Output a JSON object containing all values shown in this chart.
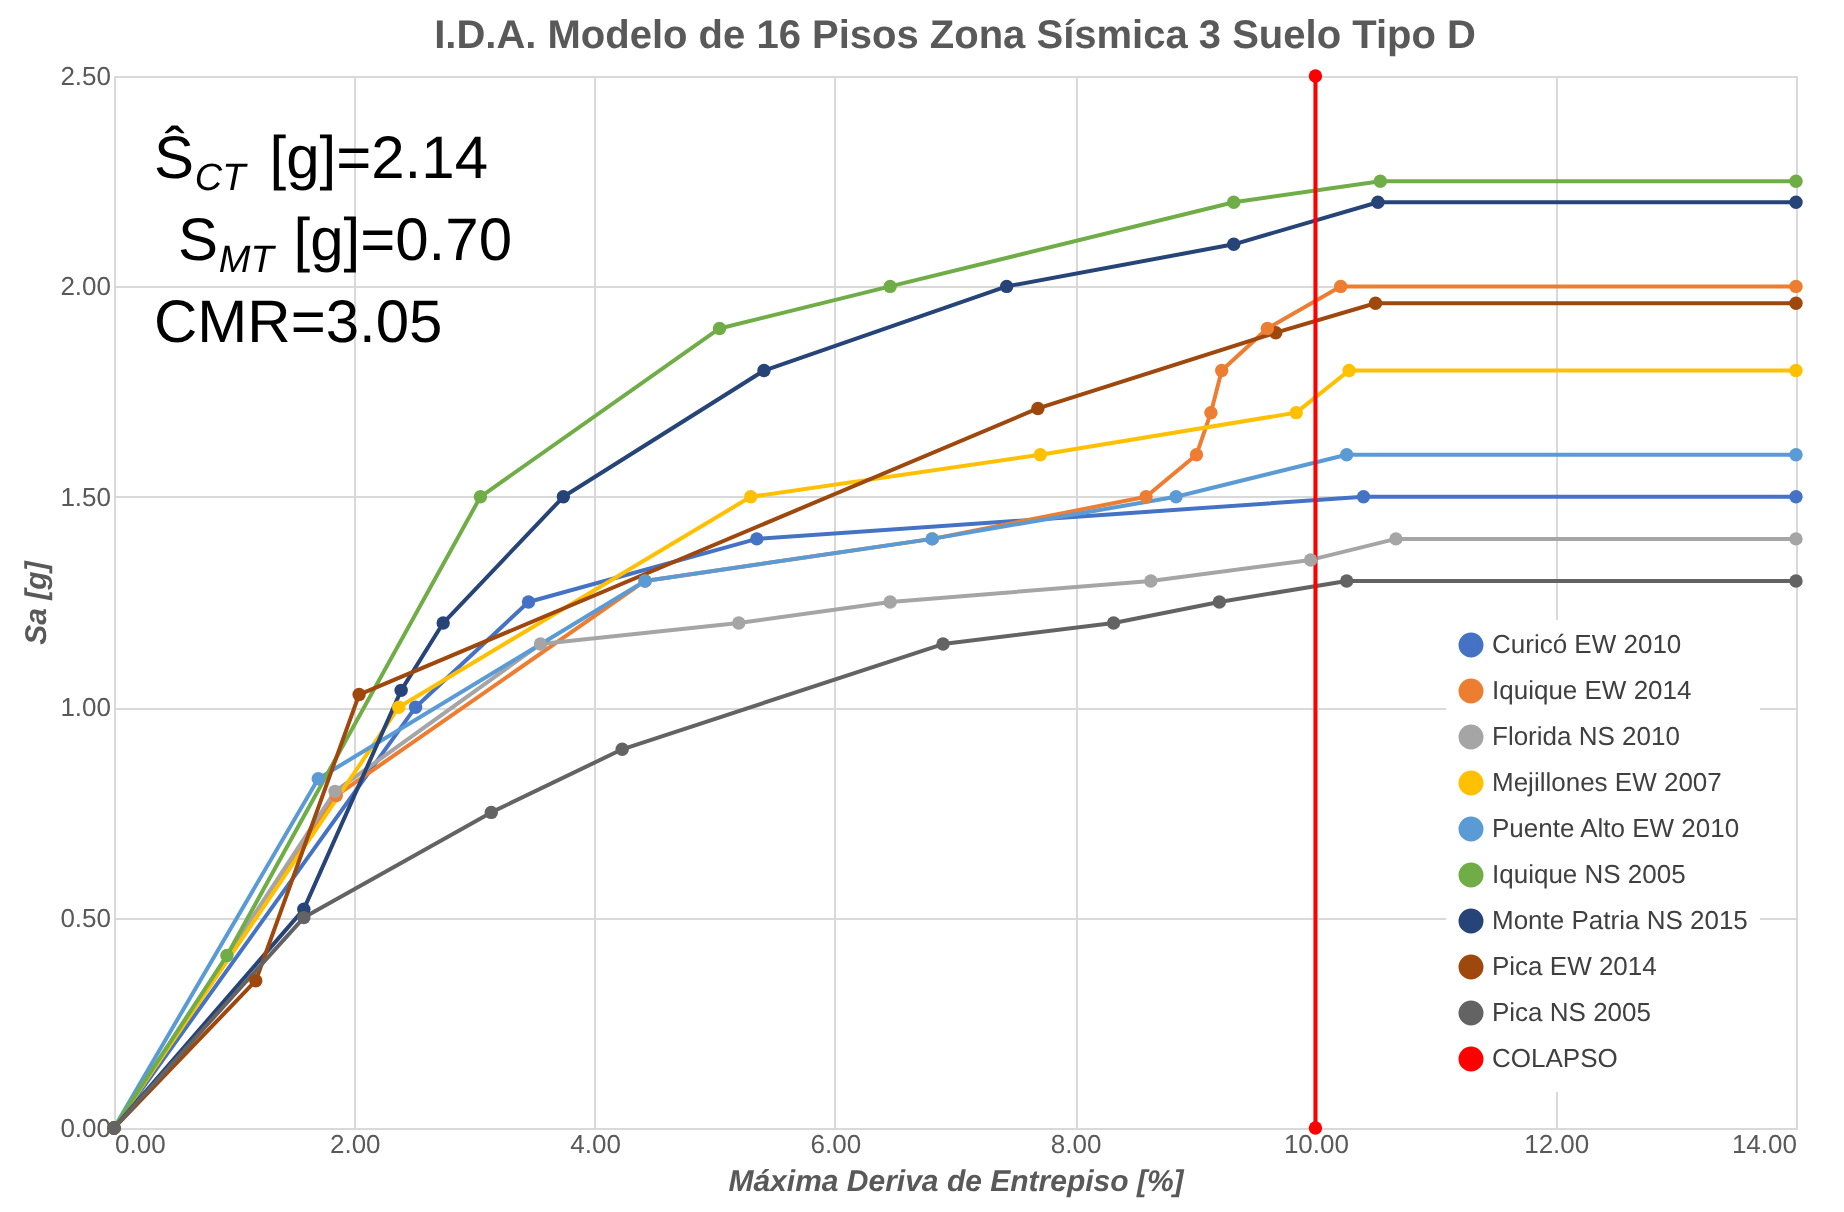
{
  "chart_data": {
    "type": "line",
    "title": "I.D.A. Modelo de 16 Pisos Zona Sísmica 3 Suelo Tipo D",
    "xlabel": "Máxima Deriva de Entrepiso [%]",
    "ylabel": "Sa [g]",
    "xlim": [
      0,
      14
    ],
    "xticks": [
      {
        "value": 0,
        "label": "0.00"
      },
      {
        "value": 2,
        "label": "2.00"
      },
      {
        "value": 4,
        "label": "4.00"
      },
      {
        "value": 6,
        "label": "6.00"
      },
      {
        "value": 8,
        "label": "8.00"
      },
      {
        "value": 10,
        "label": "10.00"
      },
      {
        "value": 12,
        "label": "12.00"
      },
      {
        "value": 14,
        "label": "14.00"
      }
    ],
    "ylim": [
      0,
      2.5
    ],
    "yticks": [
      {
        "value": 0,
        "label": "0.00"
      },
      {
        "value": 0.5,
        "label": "0.50"
      },
      {
        "value": 1,
        "label": "1.00"
      },
      {
        "value": 1.5,
        "label": "1.50"
      },
      {
        "value": 2,
        "label": "2.00"
      },
      {
        "value": 2.5,
        "label": "2.50"
      }
    ],
    "grid": true,
    "legend": "bottom right",
    "marker": "circle",
    "annotations": [
      "Ŝ$_{CT}$ [g]=2.14",
      "S$_{MT}$ [g]=0.70",
      "CMR=3.05"
    ],
    "series": [
      {
        "name": "Curicó EW 2010",
        "color": "#4472c4",
        "x": [
          0,
          2.51,
          3.45,
          5.35,
          10.4,
          14
        ],
        "values": [
          0,
          1.0,
          1.25,
          1.4,
          1.5,
          1.5
        ]
      },
      {
        "name": "Iquique EW 2014",
        "color": "#ed7d31",
        "x": [
          0,
          1.85,
          4.42,
          6.81,
          8.59,
          9.01,
          9.13,
          9.22,
          9.6,
          10.21,
          14
        ],
        "values": [
          0,
          0.79,
          1.3,
          1.4,
          1.5,
          1.6,
          1.7,
          1.8,
          1.9,
          2.0,
          2.0
        ]
      },
      {
        "name": "Florida NS 2010",
        "color": "#a5a5a5",
        "x": [
          0,
          1.84,
          3.55,
          5.2,
          6.46,
          8.63,
          9.96,
          10.67,
          14
        ],
        "values": [
          0,
          0.8,
          1.15,
          1.2,
          1.25,
          1.3,
          1.35,
          1.4,
          1.4
        ]
      },
      {
        "name": "Mejillones EW 2007",
        "color": "#ffc000",
        "x": [
          0,
          2.37,
          5.3,
          7.71,
          9.84,
          10.28,
          14
        ],
        "values": [
          0,
          1.0,
          1.5,
          1.6,
          1.7,
          1.8,
          1.8
        ]
      },
      {
        "name": "Puente Alto EW 2010",
        "color": "#5b9bd5",
        "x": [
          0,
          1.7,
          4.42,
          6.81,
          8.84,
          10.26,
          14
        ],
        "values": [
          0,
          0.83,
          1.3,
          1.4,
          1.5,
          1.6,
          1.6
        ]
      },
      {
        "name": "Iquique NS 2005",
        "color": "#70ad47",
        "x": [
          0,
          0.94,
          3.05,
          5.04,
          6.46,
          9.32,
          10.54,
          14
        ],
        "values": [
          0,
          0.41,
          1.5,
          1.9,
          2.0,
          2.2,
          2.25,
          2.25
        ]
      },
      {
        "name": "Monte Patria NS 2015",
        "color": "#264478",
        "x": [
          0,
          1.58,
          2.39,
          2.74,
          3.74,
          5.41,
          7.43,
          9.32,
          10.52,
          14
        ],
        "values": [
          0,
          0.52,
          1.04,
          1.2,
          1.5,
          1.8,
          2.0,
          2.1,
          2.2,
          2.2
        ]
      },
      {
        "name": "Pica EW 2014",
        "color": "#9e480e",
        "x": [
          0,
          1.18,
          2.04,
          7.69,
          9.67,
          10.5,
          14
        ],
        "values": [
          0,
          0.35,
          1.03,
          1.71,
          1.89,
          1.96,
          1.96
        ]
      },
      {
        "name": "Pica NS 2005",
        "color": "#636363",
        "x": [
          0,
          1.58,
          3.14,
          4.23,
          6.9,
          8.32,
          9.2,
          10.26,
          14
        ],
        "values": [
          0,
          0.5,
          0.75,
          0.9,
          1.15,
          1.2,
          1.25,
          1.3,
          1.3
        ]
      },
      {
        "name": "COLAPSO",
        "color": "#ff0000",
        "x": [
          10,
          10
        ],
        "values": [
          0,
          2.5
        ]
      }
    ]
  }
}
